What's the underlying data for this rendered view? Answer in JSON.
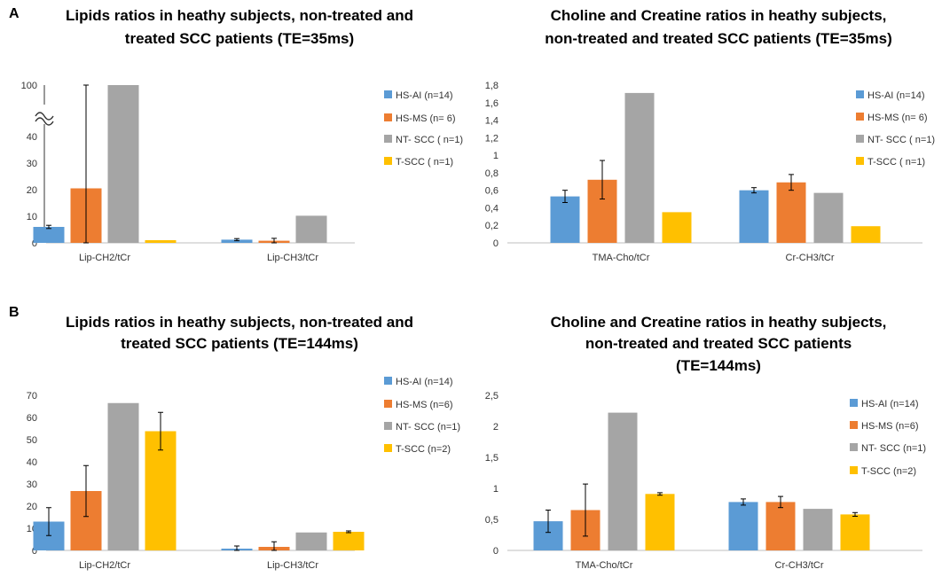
{
  "panel_labels": [
    "A",
    "B"
  ],
  "chart_data": [
    {
      "id": "A1",
      "type": "bar",
      "title_lines": [
        "Lipids ratios in heathy subjects, non-treated and",
        "treated SCC patients (TE=35ms)"
      ],
      "categories": [
        "Lip-CH2/tCr",
        "Lip-CH3/tCr"
      ],
      "series": [
        {
          "name": "HS-AI (n=14)",
          "color": "#5B9BD5",
          "values": [
            6,
            1.2
          ],
          "errors": [
            0.6,
            0.4
          ]
        },
        {
          "name": "HS-MS (n= 6)",
          "color": "#ED7D31",
          "values": [
            20.5,
            0.8
          ],
          "errors": [
            22.5,
            0.9
          ]
        },
        {
          "name": "NT- SCC ( n=1)",
          "color": "#A5A5A5",
          "values": [
            100,
            10.2
          ],
          "errors": [
            null,
            null
          ]
        },
        {
          "name": "T-SCC ( n=1)",
          "color": "#FFC000",
          "values": [
            1,
            0
          ],
          "errors": [
            null,
            null
          ]
        }
      ],
      "yticks": [
        0,
        10,
        20,
        30,
        40,
        100
      ],
      "ylim": [
        0,
        100
      ],
      "axis_break": {
        "lower_max": 40,
        "upper_min": 100
      },
      "legend_position": "right"
    },
    {
      "id": "A2",
      "type": "bar",
      "title_lines": [
        "Choline and Creatine ratios in heathy subjects,",
        "non-treated and treated SCC patients (TE=35ms)"
      ],
      "categories": [
        "TMA-Cho/tCr",
        "Cr-CH3/tCr"
      ],
      "series": [
        {
          "name": "HS-AI (n=14)",
          "color": "#5B9BD5",
          "values": [
            0.53,
            0.6
          ],
          "errors": [
            0.07,
            0.03
          ]
        },
        {
          "name": "HS-MS (n= 6)",
          "color": "#ED7D31",
          "values": [
            0.72,
            0.69
          ],
          "errors": [
            0.22,
            0.09
          ]
        },
        {
          "name": "NT- SCC ( n=1)",
          "color": "#A5A5A5",
          "values": [
            1.71,
            0.57
          ],
          "errors": [
            null,
            null
          ]
        },
        {
          "name": "T-SCC ( n=1)",
          "color": "#FFC000",
          "values": [
            0.35,
            0.19
          ],
          "errors": [
            null,
            null
          ]
        }
      ],
      "yticks": [
        "0",
        "0,2",
        "0,4",
        "0,6",
        "0,8",
        "1",
        "1,2",
        "1,4",
        "1,6",
        "1,8"
      ],
      "ylim": [
        0,
        1.8
      ],
      "legend_position": "right"
    },
    {
      "id": "B1",
      "type": "bar",
      "title_lines": [
        "Lipids ratios in heathy subjects, non-treated and",
        "treated SCC patients (TE=144ms)"
      ],
      "categories": [
        "Lip-CH2/tCr",
        "Lip-CH3/tCr"
      ],
      "series": [
        {
          "name": "HS-AI (n=14)",
          "color": "#5B9BD5",
          "values": [
            13,
            0.8
          ],
          "errors": [
            6.3,
            1.2
          ]
        },
        {
          "name": "HS-MS (n=6)",
          "color": "#ED7D31",
          "values": [
            26.8,
            1.6
          ],
          "errors": [
            11.5,
            2.3
          ]
        },
        {
          "name": "NT- SCC (n=1)",
          "color": "#A5A5A5",
          "values": [
            66.5,
            8.1
          ],
          "errors": [
            null,
            null
          ]
        },
        {
          "name": "T-SCC (n=2)",
          "color": "#FFC000",
          "values": [
            53.8,
            8.4
          ],
          "errors": [
            8.5,
            0.4
          ]
        }
      ],
      "yticks": [
        "0",
        "10",
        "20",
        "30",
        "40",
        "50",
        "60",
        "70"
      ],
      "ylim": [
        0,
        70
      ],
      "legend_position": "right"
    },
    {
      "id": "B2",
      "type": "bar",
      "title_lines": [
        "Choline and Creatine ratios in heathy subjects,",
        "non-treated and treated SCC patients",
        "(TE=144ms)"
      ],
      "categories": [
        "TMA-Cho/tCr",
        "Cr-CH3/tCr"
      ],
      "series": [
        {
          "name": "HS-AI (n=14)",
          "color": "#5B9BD5",
          "values": [
            0.47,
            0.78
          ],
          "errors": [
            0.18,
            0.05
          ]
        },
        {
          "name": "HS-MS (n=6)",
          "color": "#ED7D31",
          "values": [
            0.65,
            0.78
          ],
          "errors": [
            0.42,
            0.09
          ]
        },
        {
          "name": "NT- SCC (n=1)",
          "color": "#A5A5A5",
          "values": [
            2.22,
            0.67
          ],
          "errors": [
            null,
            null
          ]
        },
        {
          "name": "T-SCC (n=2)",
          "color": "#FFC000",
          "values": [
            0.91,
            0.58
          ],
          "errors": [
            0.02,
            0.03
          ]
        }
      ],
      "yticks": [
        "0",
        "0,5",
        "1",
        "1,5",
        "2",
        "2,5"
      ],
      "ylim": [
        0,
        2.5
      ],
      "legend_position": "right"
    }
  ]
}
